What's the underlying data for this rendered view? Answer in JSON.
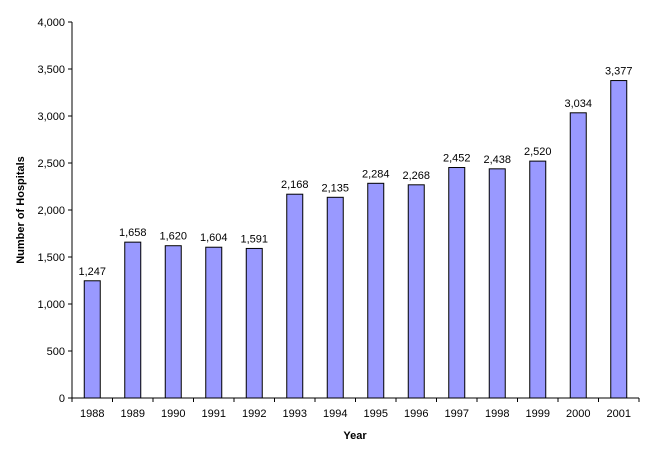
{
  "chart_data": {
    "type": "bar",
    "title": "",
    "xlabel": "Year",
    "ylabel": "Number of Hospitals",
    "categories": [
      "1988",
      "1989",
      "1990",
      "1991",
      "1992",
      "1993",
      "1994",
      "1995",
      "1996",
      "1997",
      "1998",
      "1999",
      "2000",
      "2001"
    ],
    "values": [
      1247,
      1658,
      1620,
      1604,
      1591,
      2168,
      2135,
      2284,
      2268,
      2452,
      2438,
      2520,
      3034,
      3377
    ],
    "value_labels": [
      "1,247",
      "1,658",
      "1,620",
      "1,604",
      "1,591",
      "2,168",
      "2,135",
      "2,284",
      "2,268",
      "2,452",
      "2,438",
      "2,520",
      "3,034",
      "3,377"
    ],
    "ylim": [
      0,
      4000
    ],
    "yticks": [
      0,
      500,
      1000,
      1500,
      2000,
      2500,
      3000,
      3500,
      4000
    ],
    "ytick_labels": [
      "0",
      "500",
      "1,000",
      "1,500",
      "2,000",
      "2,500",
      "3,000",
      "3,500",
      "4,000"
    ],
    "grid": false,
    "legend": null,
    "colors": {
      "bar_fill": "#9999ff",
      "bar_stroke": "#000000",
      "axis": "#000000"
    }
  }
}
